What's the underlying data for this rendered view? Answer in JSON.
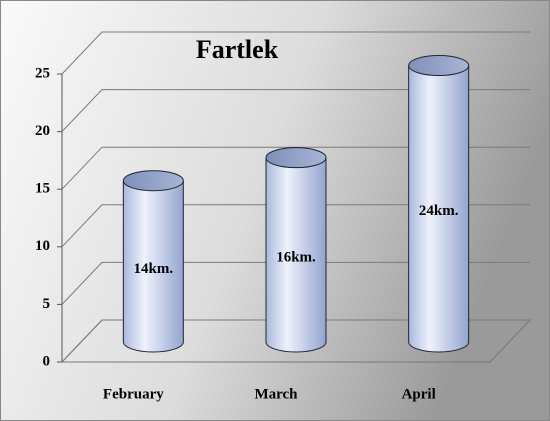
{
  "chart_data": {
    "type": "bar",
    "title": "Fartlek",
    "categories": [
      "February",
      "March",
      "April"
    ],
    "values": [
      14,
      16,
      24
    ],
    "value_labels": [
      "14km.",
      "16km.",
      "24km."
    ],
    "color": "#c7d3f0",
    "ylim": [
      0,
      25
    ],
    "yticks": [
      0,
      5,
      10,
      15,
      20,
      25
    ],
    "grid": true
  }
}
